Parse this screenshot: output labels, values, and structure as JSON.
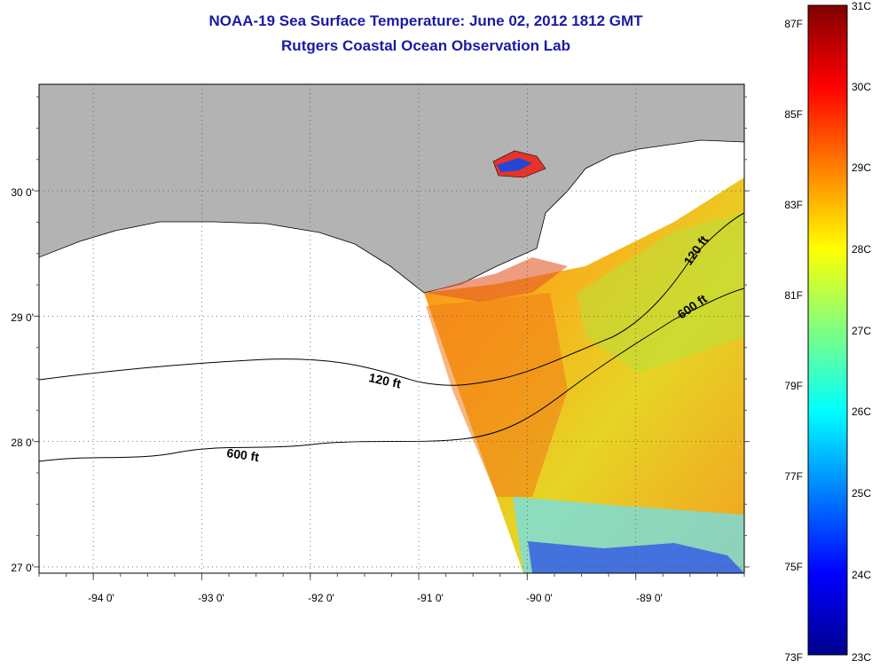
{
  "title": {
    "line1": "NOAA-19 Sea Surface Temperature:  June 02, 2012 1812 GMT",
    "line2": "Rutgers Coastal Ocean Observation Lab"
  },
  "map": {
    "lon_labels": [
      "-94 0'",
      "-93 0'",
      "-92 0'",
      "-91 0'",
      "-90 0'",
      "-89 0'"
    ],
    "lat_labels": [
      "30 0'",
      "29 0'",
      "28 0'",
      "27 0'"
    ],
    "lon_range": [
      -94.5,
      -88.0
    ],
    "lat_range": [
      26.95,
      30.85
    ],
    "grid": "dotted",
    "land_color": "#b3b3b3",
    "contour_labels": [
      "120 ft",
      "600 ft",
      "120 ft",
      "600 ft"
    ]
  },
  "colorbar": {
    "celsius_labels": [
      "31C",
      "30C",
      "29C",
      "28C",
      "27C",
      "26C",
      "25C",
      "24C",
      "23C"
    ],
    "fahrenheit_labels": [
      "87F",
      "85F",
      "83F",
      "81F",
      "79F",
      "77F",
      "75F",
      "73F"
    ],
    "range_c": [
      23,
      31
    ],
    "colormap": "jet"
  }
}
